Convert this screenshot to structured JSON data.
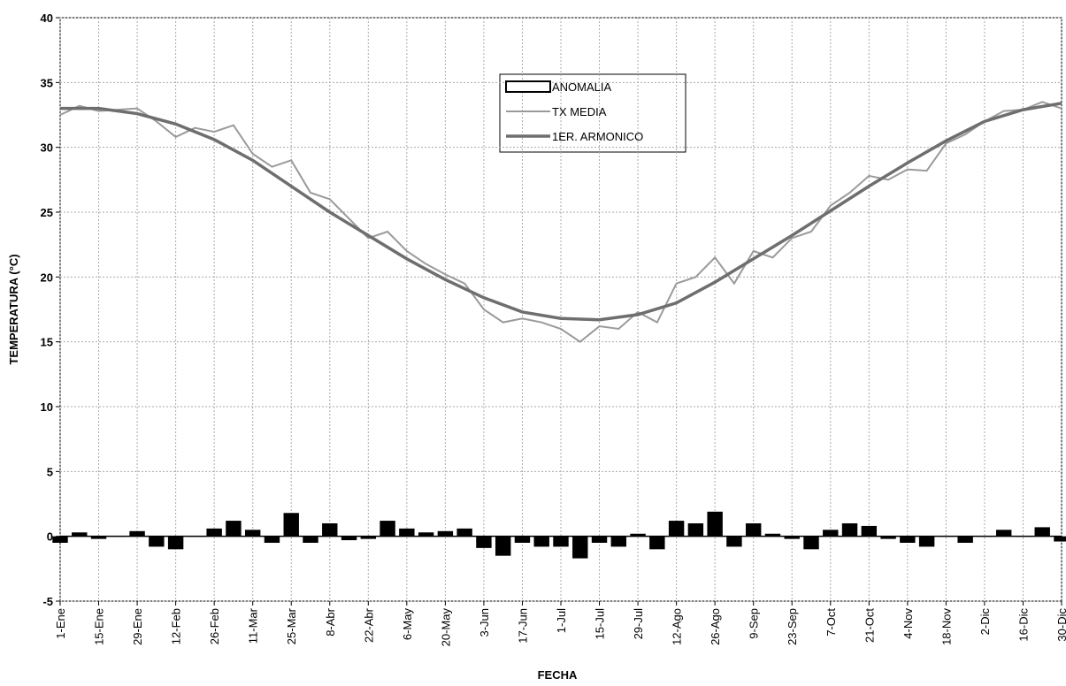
{
  "chart_data": {
    "type": "combo",
    "ylabel": "TEMPERATURA (°C)",
    "xlabel": "FECHA",
    "xlim": [
      1,
      365
    ],
    "xticks": [
      {
        "value": 1,
        "label": "1-Ene"
      },
      {
        "value": 15,
        "label": "15-Ene"
      },
      {
        "value": 29,
        "label": "29-Ene"
      },
      {
        "value": 43,
        "label": "12-Feb"
      },
      {
        "value": 57,
        "label": "26-Feb"
      },
      {
        "value": 71,
        "label": "11-Mar"
      },
      {
        "value": 85,
        "label": "25-Mar"
      },
      {
        "value": 99,
        "label": "8-Abr"
      },
      {
        "value": 113,
        "label": "22-Abr"
      },
      {
        "value": 127,
        "label": "6-May"
      },
      {
        "value": 141,
        "label": "20-May"
      },
      {
        "value": 155,
        "label": "3-Jun"
      },
      {
        "value": 169,
        "label": "17-Jun"
      },
      {
        "value": 183,
        "label": "1-Jul"
      },
      {
        "value": 197,
        "label": "15-Jul"
      },
      {
        "value": 211,
        "label": "29-Jul"
      },
      {
        "value": 225,
        "label": "12-Ago"
      },
      {
        "value": 239,
        "label": "26-Ago"
      },
      {
        "value": 253,
        "label": "9-Sep"
      },
      {
        "value": 267,
        "label": "23-Sep"
      },
      {
        "value": 281,
        "label": "7-Oct"
      },
      {
        "value": 295,
        "label": "21-Oct"
      },
      {
        "value": 309,
        "label": "4-Nov"
      },
      {
        "value": 323,
        "label": "18-Nov"
      },
      {
        "value": 337,
        "label": "2-Dic"
      },
      {
        "value": 351,
        "label": "16-Dic"
      },
      {
        "value": 365,
        "label": "30-Dic"
      }
    ],
    "ylim": [
      -5,
      40
    ],
    "yticks": [
      -5,
      0,
      5,
      10,
      15,
      20,
      25,
      30,
      35,
      40
    ],
    "grid": true,
    "series": [
      {
        "name": "ANOMALIA",
        "type": "bar",
        "color": "#000000",
        "x": [
          1,
          8,
          15,
          22,
          29,
          36,
          43,
          50,
          57,
          64,
          71,
          78,
          85,
          92,
          99,
          106,
          113,
          120,
          127,
          134,
          141,
          148,
          155,
          162,
          169,
          176,
          183,
          190,
          197,
          204,
          211,
          218,
          225,
          232,
          239,
          246,
          253,
          260,
          267,
          274,
          281,
          288,
          295,
          302,
          309,
          316,
          323,
          330,
          337,
          344,
          351,
          358,
          365
        ],
        "values": [
          -0.5,
          0.3,
          -0.2,
          0.0,
          0.4,
          -0.8,
          -1.0,
          0.0,
          0.6,
          1.2,
          0.5,
          -0.5,
          1.8,
          -0.5,
          1.0,
          -0.3,
          -0.2,
          1.2,
          0.6,
          0.3,
          0.4,
          0.6,
          -0.9,
          -1.5,
          -0.5,
          -0.8,
          -0.8,
          -1.7,
          -0.5,
          -0.8,
          0.2,
          -1.0,
          1.2,
          1.0,
          1.9,
          -0.8,
          1.0,
          0.2,
          -0.2,
          -1.0,
          0.5,
          1.0,
          0.8,
          -0.2,
          -0.5,
          -0.8,
          0.0,
          -0.5,
          0.0,
          0.5,
          0.0,
          0.7,
          -0.4
        ]
      },
      {
        "name": "TX MEDIA",
        "type": "line",
        "color": "#9a9a9a",
        "x": [
          1,
          8,
          15,
          22,
          29,
          36,
          43,
          50,
          57,
          64,
          71,
          78,
          85,
          92,
          99,
          106,
          113,
          120,
          127,
          134,
          141,
          148,
          155,
          162,
          169,
          176,
          183,
          190,
          197,
          204,
          211,
          218,
          225,
          232,
          239,
          246,
          253,
          260,
          267,
          274,
          281,
          288,
          295,
          302,
          309,
          316,
          323,
          330,
          337,
          344,
          351,
          358,
          365
        ],
        "values": [
          32.5,
          33.2,
          32.8,
          32.9,
          33.0,
          32.0,
          30.8,
          31.5,
          31.2,
          31.7,
          29.5,
          28.5,
          29.0,
          26.5,
          26.0,
          24.5,
          23.0,
          23.5,
          22.0,
          21.0,
          20.2,
          19.5,
          17.5,
          16.5,
          16.8,
          16.5,
          16.0,
          15.0,
          16.2,
          16.0,
          17.3,
          16.5,
          19.5,
          20.0,
          21.5,
          19.5,
          22.0,
          21.5,
          23.0,
          23.5,
          25.5,
          26.5,
          27.8,
          27.5,
          28.3,
          28.2,
          30.3,
          31.0,
          32.0,
          32.8,
          32.9,
          33.5,
          33.0
        ]
      },
      {
        "name": "1ER. ARMONICO",
        "type": "line",
        "color": "#6e6e6e",
        "x": [
          1,
          15,
          29,
          43,
          57,
          71,
          85,
          99,
          113,
          127,
          141,
          155,
          169,
          183,
          197,
          211,
          225,
          239,
          253,
          267,
          281,
          295,
          309,
          323,
          337,
          351,
          365
        ],
        "values": [
          33.0,
          33.0,
          32.6,
          31.8,
          30.6,
          29.0,
          27.0,
          25.0,
          23.2,
          21.4,
          19.8,
          18.4,
          17.3,
          16.8,
          16.7,
          17.1,
          18.0,
          19.6,
          21.4,
          23.2,
          25.1,
          27.0,
          28.8,
          30.5,
          32.0,
          32.9,
          33.4
        ]
      }
    ]
  }
}
